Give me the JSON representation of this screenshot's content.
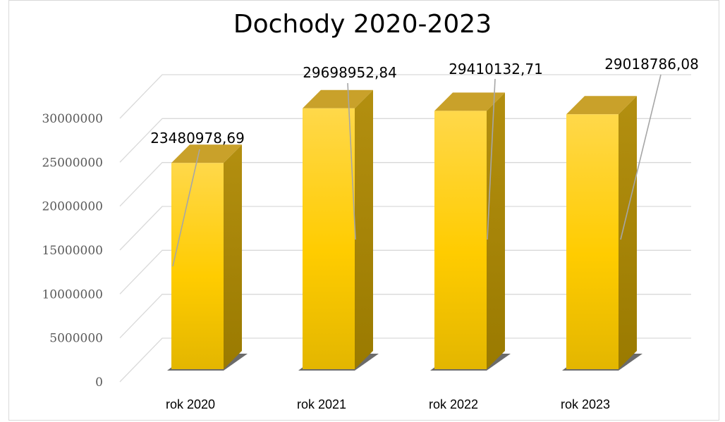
{
  "chart_data": {
    "type": "bar",
    "title": "Dochody 2020-2023",
    "categories": [
      "rok 2020",
      "rok 2021",
      "rok 2022",
      "rok 2023"
    ],
    "values": [
      23480978.69,
      29698952.84,
      29410132.71,
      29018786.08
    ],
    "data_labels": [
      "23480978,69",
      "29698952,84",
      "29410132,71",
      "29018786,08"
    ],
    "yticks": [
      "0",
      "5000000",
      "10000000",
      "15000000",
      "20000000",
      "25000000",
      "30000000"
    ],
    "ylim": [
      0,
      30000000
    ],
    "grid": true,
    "legend": "none",
    "style": "3d-column"
  },
  "colors": {
    "bar_front_top": "#ffd84a",
    "bar_front_mid": "#ffcc00",
    "bar_front_bottom": "#e0b400",
    "bar_side": "#a88500",
    "bar_top": "#c9a12a",
    "grid": "#d9d9d9",
    "leader": "#a6a6a6"
  }
}
